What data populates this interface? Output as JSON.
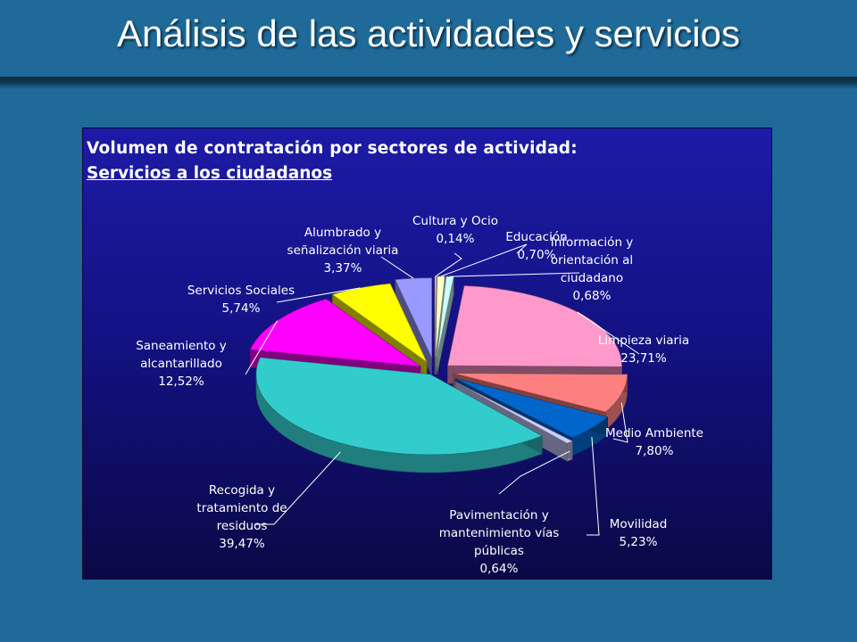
{
  "slide": {
    "title": "Análisis de las actividades y servicios"
  },
  "chart_data": {
    "type": "pie",
    "title": "Volumen de contratación por sectores de actividad:",
    "subtitle": "Servicios a los ciudadanos",
    "exploded": true,
    "three_d": true,
    "legend": "none",
    "slices": [
      {
        "label": "Cultura y Ocio",
        "value": 0.14,
        "value_text": "0,14%",
        "color": "#ffe3c7"
      },
      {
        "label": "Educación",
        "value": 0.7,
        "value_text": "0,70%",
        "color": "#ffffcc"
      },
      {
        "label": "Información y orientación al ciudadano",
        "value": 0.68,
        "value_text": "0,68%",
        "color": "#ccffff"
      },
      {
        "label": "Limpieza viaria",
        "value": 23.71,
        "value_text": "23,71%",
        "color": "#ff99cc"
      },
      {
        "label": "Medio Ambiente",
        "value": 7.8,
        "value_text": "7,80%",
        "color": "#ff8080"
      },
      {
        "label": "Movilidad",
        "value": 5.23,
        "value_text": "5,23%",
        "color": "#0066cc"
      },
      {
        "label": "Pavimentación y mantenimiento vías públicas",
        "value": 0.64,
        "value_text": "0,64%",
        "color": "#ccccff"
      },
      {
        "label": "Recogida y tratamiento de residuos",
        "value": 39.47,
        "value_text": "39,47%",
        "color": "#33cccc"
      },
      {
        "label": "Saneamiento y alcantarillado",
        "value": 12.52,
        "value_text": "12,52%",
        "color": "#ff00ff"
      },
      {
        "label": "Servicios Sociales",
        "value": 5.74,
        "value_text": "5,74%",
        "color": "#ffff00"
      },
      {
        "label": "Alumbrado y señalización viaria",
        "value": 3.37,
        "value_text": "3,37%",
        "color": "#9999ff"
      }
    ],
    "label_lines": [
      [
        "Cultura y Ocio",
        "0,14%"
      ],
      [
        "Educación",
        "0,70%"
      ],
      [
        "Información y",
        "orientación al",
        "ciudadano",
        "0,68%"
      ],
      [
        "Limpieza viaria",
        "23,71%"
      ],
      [
        "Medio Ambiente",
        "7,80%"
      ],
      [
        "Movilidad",
        "5,23%"
      ],
      [
        "Pavimentación y",
        "mantenimiento vías",
        "públicas",
        "0,64%"
      ],
      [
        "Recogida y",
        "tratamiento de",
        "residuos",
        "39,47%"
      ],
      [
        "Saneamiento y",
        "alcantarillado",
        "12,52%"
      ],
      [
        "Servicios Sociales",
        "5,74%"
      ],
      [
        "Alumbrado y",
        "señalización viaria",
        "3,37%"
      ]
    ]
  }
}
